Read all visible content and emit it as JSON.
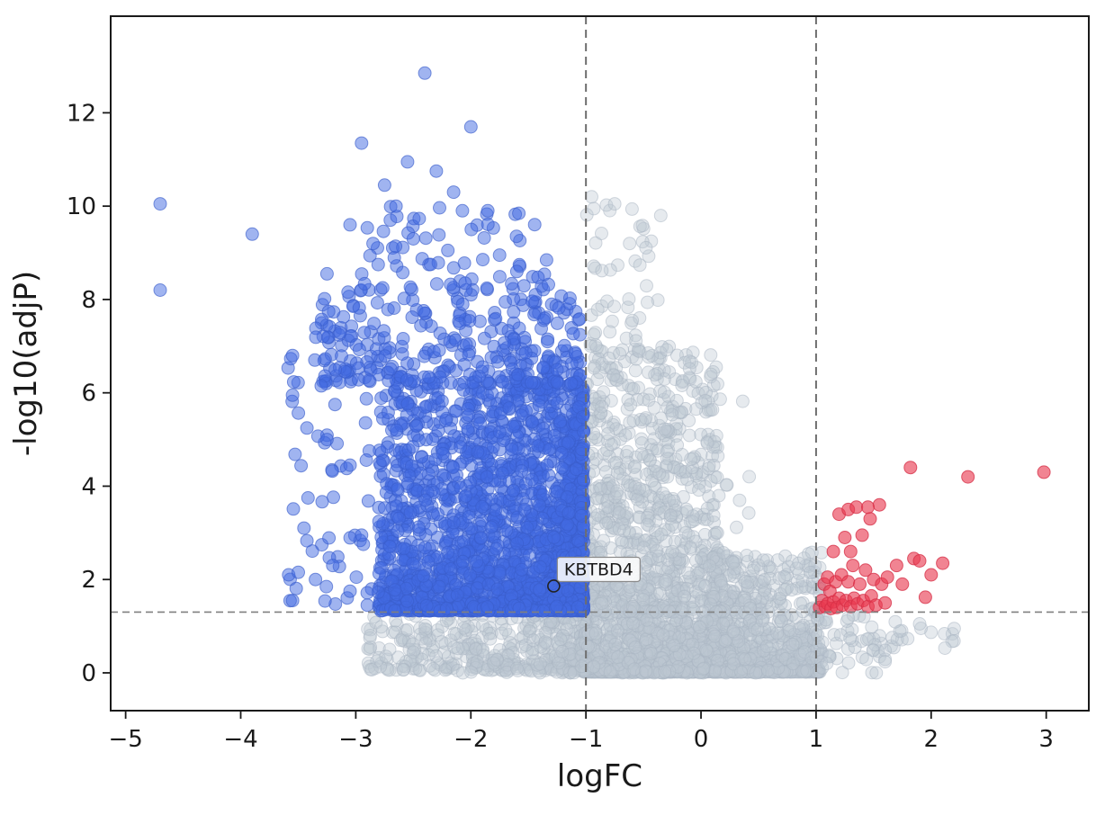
{
  "chart_data": {
    "type": "scatter",
    "title": "",
    "xlabel": "logFC",
    "ylabel": "-log10(adjP)",
    "xlim": [
      -5.13,
      3.37
    ],
    "ylim": [
      -0.81,
      14.07
    ],
    "xticks": [
      -5,
      -4,
      -3,
      -2,
      -1,
      0,
      1,
      2,
      3
    ],
    "xtick_labels": [
      "−5",
      "−4",
      "−3",
      "−2",
      "−1",
      "0",
      "1",
      "2",
      "3"
    ],
    "yticks": [
      0,
      2,
      4,
      6,
      8,
      10,
      12
    ],
    "ytick_labels": [
      "0",
      "2",
      "4",
      "6",
      "8",
      "10",
      "12"
    ],
    "grid": false,
    "legend": "none",
    "thresholds": {
      "vlines": [
        -1,
        1
      ],
      "hline": 1.301,
      "line_color": "#808080"
    },
    "annotation": {
      "label": "KBTBD4",
      "x": -1.28,
      "y": 1.86
    },
    "marker_radius": 7,
    "seed": 42,
    "series": [
      {
        "name": "not-significant",
        "color": "#bcc7d1",
        "edge_color": "#aab6c2",
        "opacity": 0.38,
        "clusters": [
          {
            "n": 1500,
            "x": {
              "dist": "power",
              "min": -1.02,
              "max": 0.15,
              "exp": 1,
              "from": "min"
            },
            "y": {
              "dist": "power",
              "min": 0.02,
              "max": 7.0,
              "exp": 3.2,
              "from": "min"
            }
          },
          {
            "n": 800,
            "x": {
              "dist": "power",
              "min": 0.1,
              "max": 1.05,
              "exp": 1.3,
              "from": "min"
            },
            "y": {
              "dist": "power",
              "min": 0.02,
              "max": 2.6,
              "exp": 3.0,
              "from": "min"
            }
          },
          {
            "n": 380,
            "x": {
              "dist": "power",
              "min": -2.9,
              "max": -1.0,
              "exp": 1.8,
              "from": "max"
            },
            "y": {
              "dist": "power",
              "min": 0.05,
              "max": 1.28,
              "exp": 1.6,
              "from": "min"
            }
          },
          {
            "n": 130,
            "x": {
              "dist": "power",
              "min": -1.0,
              "max": -0.3,
              "exp": 1,
              "from": "min"
            },
            "y": {
              "dist": "power",
              "min": 1.3,
              "max": 10.3,
              "exp": 2.4,
              "from": "min"
            }
          },
          {
            "n": 80,
            "x": {
              "dist": "power",
              "min": -0.35,
              "max": 0.45,
              "exp": 1,
              "from": "min"
            },
            "y": {
              "dist": "power",
              "min": 1.3,
              "max": 6.3,
              "exp": 2.6,
              "from": "min"
            }
          },
          {
            "n": 45,
            "x": {
              "dist": "power",
              "min": 1.0,
              "max": 1.75,
              "exp": 1,
              "from": "min"
            },
            "y": {
              "dist": "power",
              "min": 0.3,
              "max": 1.25,
              "exp": 1,
              "from": "min"
            }
          },
          {
            "n": 8,
            "x": {
              "dist": "power",
              "min": 1.75,
              "max": 2.35,
              "exp": 1,
              "from": "min"
            },
            "y": {
              "dist": "power",
              "min": 0.5,
              "max": 1.1,
              "exp": 1,
              "from": "min"
            }
          },
          {
            "n": 220,
            "x": {
              "dist": "normal",
              "mean": -0.3,
              "sd": 0.85,
              "clip": [
                -2.5,
                1.6
              ]
            },
            "y": {
              "dist": "power",
              "min": 0.0,
              "max": 1.2,
              "exp": 2.2,
              "from": "min"
            }
          },
          {
            "n": 18,
            "x": {
              "dist": "power",
              "min": -0.95,
              "max": -0.45,
              "exp": 1,
              "from": "min"
            },
            "y": {
              "dist": "power",
              "min": 7.0,
              "max": 10.3,
              "exp": 1,
              "from": "min"
            }
          }
        ],
        "points": [
          [
            -0.95,
            10.2
          ],
          [
            -0.75,
            10.05
          ],
          [
            -0.62,
            9.2
          ],
          [
            1.9,
            1.05
          ],
          [
            2.2,
            0.95
          ],
          [
            0.85,
            2.35
          ],
          [
            0.95,
            2.15
          ]
        ]
      },
      {
        "name": "significant-down",
        "color": "#4169e1",
        "edge_color": "#3a5ecb",
        "opacity": 0.5,
        "clusters": [
          {
            "n": 2100,
            "x": {
              "dist": "power",
              "min": -2.8,
              "max": -1.02,
              "exp": 1.5,
              "from": "max"
            },
            "y": {
              "dist": "power",
              "min": 1.33,
              "max": 6.2,
              "exp": 2.0,
              "from": "min"
            }
          },
          {
            "n": 300,
            "x": {
              "dist": "power",
              "min": -3.3,
              "max": -1.05,
              "exp": 1.3,
              "from": "max"
            },
            "y": {
              "dist": "power",
              "min": 6.2,
              "max": 8.2,
              "exp": 1.7,
              "from": "min"
            }
          },
          {
            "n": 70,
            "x": {
              "dist": "power",
              "min": -3.0,
              "max": -1.3,
              "exp": 1,
              "from": "max"
            },
            "y": {
              "dist": "power",
              "min": 8.2,
              "max": 10.0,
              "exp": 1.6,
              "from": "min"
            }
          },
          {
            "n": 60,
            "x": {
              "dist": "power",
              "min": -3.6,
              "max": -2.8,
              "exp": 1.2,
              "from": "max"
            },
            "y": {
              "dist": "power",
              "min": 1.4,
              "max": 7.5,
              "exp": 1.4,
              "from": "min"
            }
          }
        ],
        "points": [
          [
            -2.4,
            12.85
          ],
          [
            -2.0,
            11.7
          ],
          [
            -2.95,
            11.35
          ],
          [
            -2.55,
            10.95
          ],
          [
            -2.3,
            10.75
          ],
          [
            -2.75,
            10.45
          ],
          [
            -2.15,
            10.3
          ],
          [
            -4.7,
            10.05
          ],
          [
            -2.65,
            10.0
          ],
          [
            -3.05,
            9.6
          ],
          [
            -3.9,
            9.4
          ],
          [
            -2.5,
            9.3
          ],
          [
            -2.85,
            9.2
          ],
          [
            -2.2,
            9.05
          ],
          [
            -1.75,
            8.95
          ],
          [
            -2.35,
            8.75
          ],
          [
            -3.25,
            8.55
          ],
          [
            -2.05,
            8.35
          ],
          [
            -1.6,
            8.6
          ],
          [
            -4.7,
            8.2
          ],
          [
            -3.55,
            6.8
          ],
          [
            -3.3,
            6.15
          ],
          [
            -3.55,
            5.95
          ],
          [
            -3.25,
            5.0
          ],
          [
            -3.05,
            4.45
          ],
          [
            -3.45,
            3.1
          ],
          [
            -2.95,
            2.95
          ],
          [
            -3.2,
            2.3
          ],
          [
            -3.35,
            2.0
          ],
          [
            -3.05,
            1.75
          ],
          [
            -2.9,
            1.45
          ],
          [
            -3.55,
            1.55
          ]
        ]
      },
      {
        "name": "significant-up",
        "color": "#e8384f",
        "edge_color": "#d62f46",
        "opacity": 0.62,
        "clusters": [],
        "points": [
          [
            1.03,
            1.4
          ],
          [
            1.05,
            1.55
          ],
          [
            1.07,
            1.9
          ],
          [
            1.08,
            1.42
          ],
          [
            1.1,
            2.05
          ],
          [
            1.1,
            1.48
          ],
          [
            1.12,
            1.75
          ],
          [
            1.13,
            1.38
          ],
          [
            1.15,
            2.6
          ],
          [
            1.15,
            1.52
          ],
          [
            1.17,
            1.95
          ],
          [
            1.18,
            1.4
          ],
          [
            1.2,
            3.4
          ],
          [
            1.2,
            1.6
          ],
          [
            1.22,
            2.1
          ],
          [
            1.23,
            1.45
          ],
          [
            1.25,
            2.9
          ],
          [
            1.26,
            1.55
          ],
          [
            1.28,
            1.95
          ],
          [
            1.28,
            3.5
          ],
          [
            1.3,
            1.42
          ],
          [
            1.32,
            2.3
          ],
          [
            1.33,
            1.6
          ],
          [
            1.35,
            3.55
          ],
          [
            1.36,
            1.48
          ],
          [
            1.38,
            1.9
          ],
          [
            1.4,
            2.95
          ],
          [
            1.41,
            1.55
          ],
          [
            1.43,
            2.2
          ],
          [
            1.45,
            1.42
          ],
          [
            1.47,
            3.3
          ],
          [
            1.48,
            1.65
          ],
          [
            1.5,
            2.0
          ],
          [
            1.52,
            1.45
          ],
          [
            1.55,
            3.6
          ],
          [
            1.57,
            1.9
          ],
          [
            1.6,
            1.5
          ],
          [
            1.62,
            2.05
          ],
          [
            1.45,
            3.55
          ],
          [
            1.3,
            2.6
          ],
          [
            1.7,
            2.3
          ],
          [
            1.75,
            1.9
          ],
          [
            1.82,
            4.4
          ],
          [
            1.85,
            2.45
          ],
          [
            1.9,
            2.4
          ],
          [
            1.95,
            1.62
          ],
          [
            2.0,
            2.1
          ],
          [
            2.1,
            2.35
          ],
          [
            2.32,
            4.2
          ],
          [
            2.98,
            4.3
          ]
        ]
      }
    ]
  }
}
